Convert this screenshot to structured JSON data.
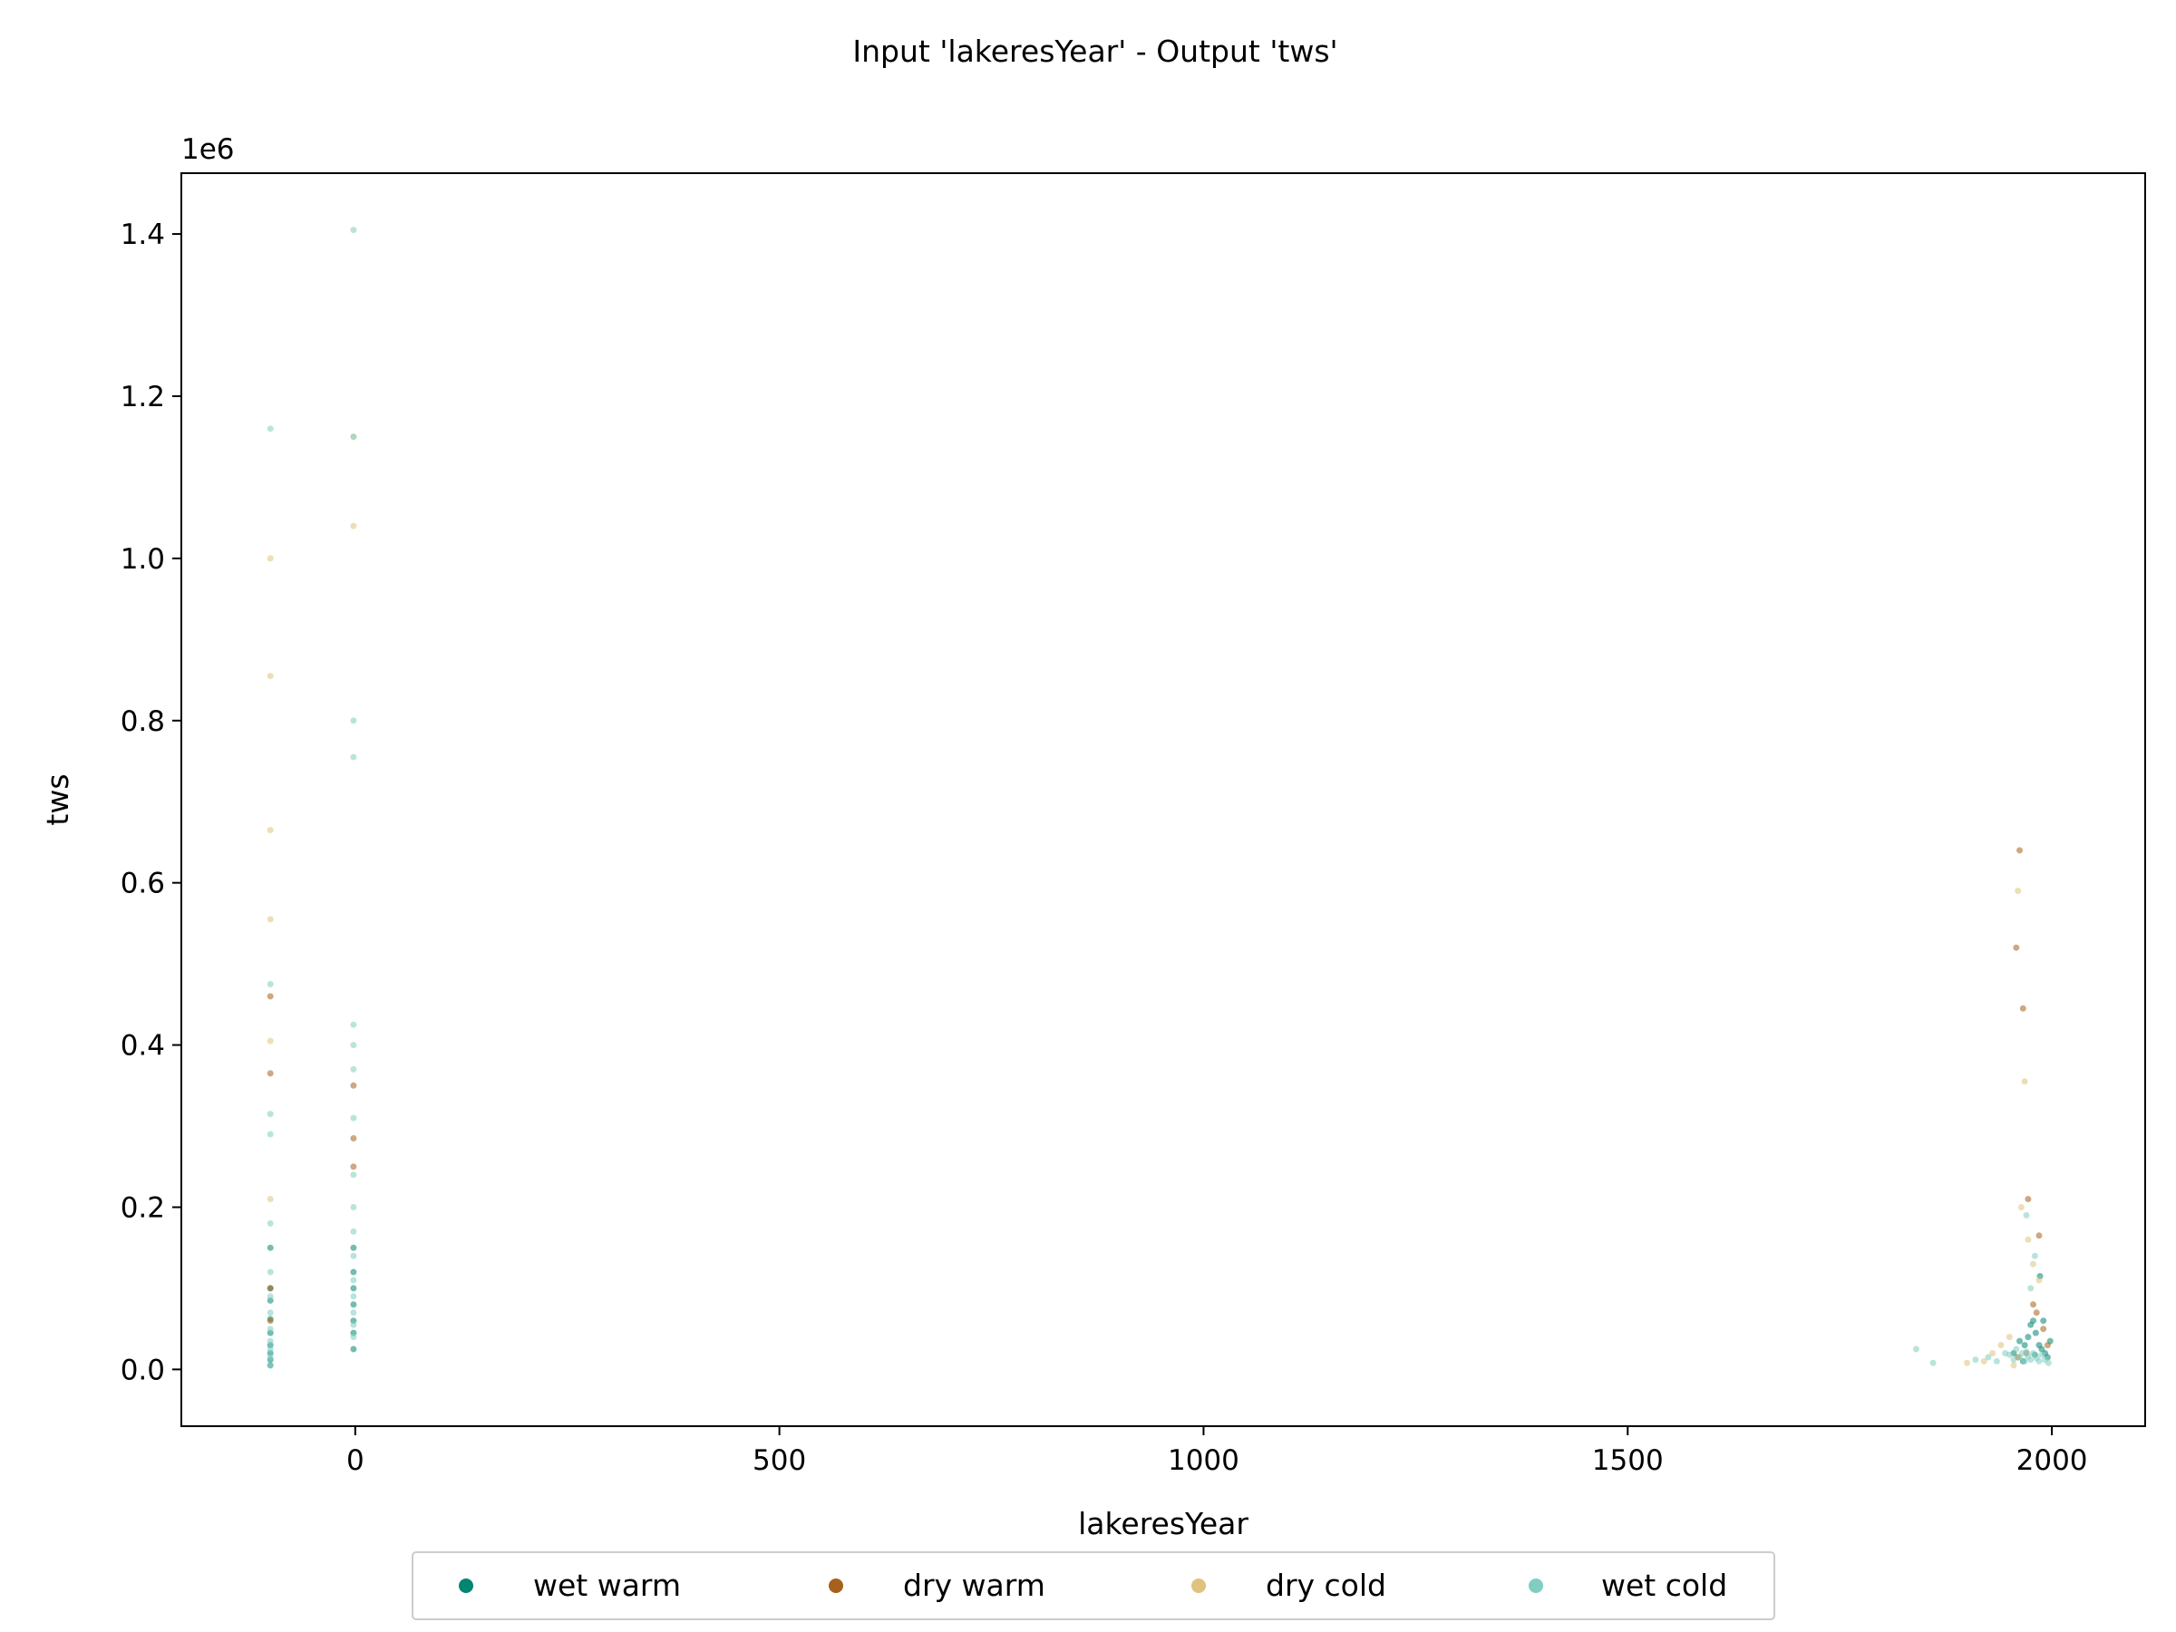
{
  "chart_data": {
    "type": "scatter",
    "title": "Input 'lakeresYear' - Output 'tws'",
    "xlabel": "lakeresYear",
    "ylabel": "tws",
    "y_offset_text": "1e6",
    "xlim": [
      -205,
      2110
    ],
    "ylim": [
      -70000,
      1475000
    ],
    "xticks": [
      0,
      500,
      1000,
      1500,
      2000
    ],
    "xtick_labels": [
      "0",
      "500",
      "1000",
      "1500",
      "2000"
    ],
    "yticks": [
      0,
      200000,
      400000,
      600000,
      800000,
      1000000,
      1200000,
      1400000
    ],
    "ytick_labels": [
      "0.0",
      "0.2",
      "0.4",
      "0.6",
      "0.8",
      "1.0",
      "1.2",
      "1.4"
    ],
    "grid": false,
    "legend_position": "bottom-center",
    "series": [
      {
        "name": "wet warm",
        "color": "#018571",
        "points": [
          [
            -100,
            5000
          ],
          [
            -100,
            12000
          ],
          [
            -100,
            20000
          ],
          [
            -100,
            30000
          ],
          [
            -100,
            45000
          ],
          [
            -100,
            62000
          ],
          [
            -100,
            85000
          ],
          [
            -100,
            100000
          ],
          [
            -100,
            150000
          ],
          [
            -2,
            25000
          ],
          [
            -2,
            45000
          ],
          [
            -2,
            60000
          ],
          [
            -2,
            80000
          ],
          [
            -2,
            100000
          ],
          [
            -2,
            120000
          ],
          [
            -2,
            150000
          ],
          [
            1955,
            20000
          ],
          [
            1962,
            35000
          ],
          [
            1968,
            30000
          ],
          [
            1972,
            40000
          ],
          [
            1975,
            55000
          ],
          [
            1978,
            60000
          ],
          [
            1981,
            45000
          ],
          [
            1985,
            30000
          ],
          [
            1988,
            25000
          ],
          [
            1992,
            20000
          ],
          [
            1995,
            15000
          ],
          [
            1998,
            35000
          ],
          [
            1966,
            10000
          ],
          [
            1980,
            18000
          ],
          [
            1986,
            115000
          ],
          [
            1990,
            60000
          ]
        ]
      },
      {
        "name": "dry warm",
        "color": "#a6611a",
        "points": [
          [
            -100,
            60000
          ],
          [
            -100,
            100000
          ],
          [
            -100,
            365000
          ],
          [
            -100,
            460000
          ],
          [
            -2,
            250000
          ],
          [
            -2,
            285000
          ],
          [
            -2,
            350000
          ],
          [
            1958,
            520000
          ],
          [
            1962,
            640000
          ],
          [
            1966,
            445000
          ],
          [
            1972,
            210000
          ],
          [
            1985,
            165000
          ],
          [
            1978,
            80000
          ],
          [
            1982,
            70000
          ],
          [
            1990,
            50000
          ],
          [
            1995,
            30000
          ],
          [
            1970,
            20000
          ],
          [
            1960,
            15000
          ]
        ]
      },
      {
        "name": "dry cold",
        "color": "#dfc27d",
        "points": [
          [
            -100,
            210000
          ],
          [
            -100,
            405000
          ],
          [
            -100,
            555000
          ],
          [
            -100,
            665000
          ],
          [
            -100,
            855000
          ],
          [
            -100,
            1000000
          ],
          [
            -2,
            1150000
          ],
          [
            -2,
            1040000
          ],
          [
            1960,
            590000
          ],
          [
            1968,
            355000
          ],
          [
            1964,
            200000
          ],
          [
            1972,
            160000
          ],
          [
            1978,
            130000
          ],
          [
            1985,
            110000
          ],
          [
            1950,
            40000
          ],
          [
            1940,
            30000
          ],
          [
            1930,
            20000
          ],
          [
            1920,
            10000
          ],
          [
            1900,
            8000
          ],
          [
            1955,
            5000
          ]
        ]
      },
      {
        "name": "wet cold",
        "color": "#80cdc1",
        "points": [
          [
            -100,
            5000
          ],
          [
            -100,
            15000
          ],
          [
            -100,
            25000
          ],
          [
            -100,
            35000
          ],
          [
            -100,
            50000
          ],
          [
            -100,
            70000
          ],
          [
            -100,
            90000
          ],
          [
            -100,
            120000
          ],
          [
            -100,
            180000
          ],
          [
            -100,
            290000
          ],
          [
            -100,
            315000
          ],
          [
            -100,
            475000
          ],
          [
            -100,
            1160000
          ],
          [
            -2,
            40000
          ],
          [
            -2,
            55000
          ],
          [
            -2,
            70000
          ],
          [
            -2,
            90000
          ],
          [
            -2,
            110000
          ],
          [
            -2,
            140000
          ],
          [
            -2,
            170000
          ],
          [
            -2,
            200000
          ],
          [
            -2,
            240000
          ],
          [
            -2,
            310000
          ],
          [
            -2,
            370000
          ],
          [
            -2,
            400000
          ],
          [
            -2,
            425000
          ],
          [
            -2,
            755000
          ],
          [
            -2,
            800000
          ],
          [
            -2,
            1150000
          ],
          [
            -2,
            1405000
          ],
          [
            1840,
            25000
          ],
          [
            1860,
            8000
          ],
          [
            1910,
            12000
          ],
          [
            1925,
            15000
          ],
          [
            1935,
            10000
          ],
          [
            1945,
            20000
          ],
          [
            1950,
            18000
          ],
          [
            1955,
            12000
          ],
          [
            1958,
            25000
          ],
          [
            1962,
            15000
          ],
          [
            1965,
            20000
          ],
          [
            1968,
            10000
          ],
          [
            1970,
            22000
          ],
          [
            1972,
            16000
          ],
          [
            1975,
            12000
          ],
          [
            1978,
            20000
          ],
          [
            1982,
            14000
          ],
          [
            1985,
            10000
          ],
          [
            1988,
            18000
          ],
          [
            1992,
            12000
          ],
          [
            1996,
            8000
          ],
          [
            1975,
            100000
          ],
          [
            1980,
            140000
          ],
          [
            1970,
            190000
          ]
        ]
      }
    ]
  }
}
